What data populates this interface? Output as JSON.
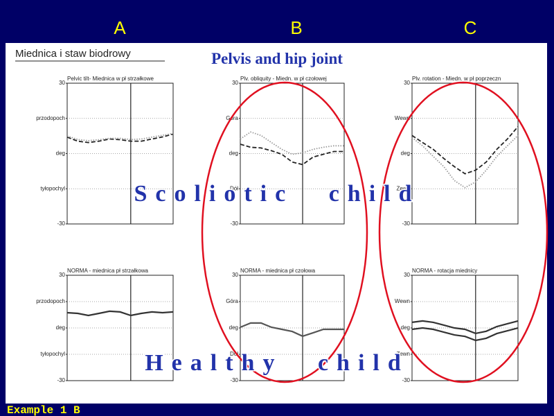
{
  "header": {
    "columns": [
      "A",
      "B",
      "C"
    ],
    "title": "Miednica i staw biodrowy",
    "subtitle": "Pelvis and hip joint",
    "label_top": "Scoliotic child",
    "label_bottom": "Healthy child",
    "footer": "Example 1 B"
  },
  "chart_data": [
    {
      "type": "line",
      "title": "Pelvic tilt- Miednica w pł strzałkowe",
      "xlim": [
        0,
        100
      ],
      "ylim": [
        -30,
        30
      ],
      "grid": true,
      "yticks": [
        -30,
        {
          "value": -15,
          "label": "tyłopochyl"
        },
        {
          "value": 0,
          "label": "deg"
        },
        {
          "value": 15,
          "label": "przodopoch"
        },
        30
      ],
      "x": [
        0,
        10,
        20,
        30,
        40,
        50,
        60,
        70,
        80,
        90,
        100
      ],
      "series": [
        {
          "color": "#222222",
          "dash": "dashed",
          "values": [
            7,
            5.3,
            4.7,
            5.3,
            6.2,
            5.9,
            5.3,
            5.3,
            6.2,
            7.1,
            8.3
          ]
        },
        {
          "color": "#999999",
          "dash": "dotted",
          "values": [
            7.5,
            6,
            5.5,
            5.9,
            6.5,
            6.5,
            6,
            6.2,
            7,
            7.8,
            8.5
          ]
        }
      ]
    },
    {
      "type": "line",
      "title": "Plv. obliquity - Miedn. w pł czołowej",
      "xlim": [
        0,
        100
      ],
      "ylim": [
        -30,
        30
      ],
      "grid": true,
      "yticks": [
        -30,
        {
          "value": -15,
          "label": "Dół"
        },
        {
          "value": 0,
          "label": "deg"
        },
        {
          "value": 15,
          "label": "Góra"
        },
        30
      ],
      "x": [
        0,
        10,
        20,
        30,
        40,
        50,
        60,
        70,
        80,
        90,
        100
      ],
      "series": [
        {
          "color": "#222222",
          "dash": "dashed",
          "values": [
            4,
            2.7,
            2.4,
            1.2,
            -0.3,
            -3.6,
            -4.7,
            -1.5,
            -0.3,
            0.9,
            0.9
          ]
        },
        {
          "color": "#999999",
          "dash": "dotted",
          "values": [
            6.2,
            9.2,
            7.7,
            4.7,
            1.8,
            -0.3,
            0.3,
            1.8,
            2.7,
            3.3,
            3.3
          ]
        }
      ]
    },
    {
      "type": "line",
      "title": "Plv. rotation - Miedn. w pł poprzeczn",
      "xlim": [
        0,
        100
      ],
      "ylim": [
        -30,
        30
      ],
      "grid": true,
      "yticks": [
        -30,
        {
          "value": -15,
          "label": "Zewn"
        },
        {
          "value": 0,
          "label": "deg"
        },
        {
          "value": 15,
          "label": "Wewn"
        },
        30
      ],
      "x": [
        0,
        10,
        20,
        30,
        40,
        50,
        60,
        70,
        80,
        90,
        100
      ],
      "series": [
        {
          "color": "#222222",
          "dash": "dashed",
          "values": [
            7.7,
            4.7,
            1.8,
            -2.1,
            -5.6,
            -8.6,
            -7.1,
            -3.6,
            1.8,
            6.2,
            11.5
          ]
        },
        {
          "color": "#999999",
          "dash": "dotted",
          "values": [
            6.8,
            3.3,
            -1.2,
            -5.6,
            -11.5,
            -14.5,
            -12.1,
            -7.1,
            -1.2,
            3.3,
            7.7
          ]
        }
      ]
    },
    {
      "type": "line",
      "title": "NORMA - miednica pł strzałkowa",
      "xlim": [
        0,
        100
      ],
      "ylim": [
        -30,
        30
      ],
      "grid": true,
      "yticks": [
        -30,
        {
          "value": -15,
          "label": "tyłopochyl"
        },
        {
          "value": 0,
          "label": "deg"
        },
        {
          "value": 15,
          "label": "przodopoch"
        },
        30
      ],
      "x": [
        0,
        10,
        20,
        30,
        40,
        50,
        60,
        70,
        80,
        90,
        100
      ],
      "series": [
        {
          "color": "#333333",
          "dash": "solid",
          "values": [
            8.7,
            8.3,
            7.1,
            8.3,
            9.5,
            9.1,
            7.1,
            8.3,
            9.1,
            8.7,
            9.1
          ]
        }
      ]
    },
    {
      "type": "line",
      "title": "NORMA - miednica pł czołowa",
      "xlim": [
        0,
        100
      ],
      "ylim": [
        -30,
        30
      ],
      "grid": true,
      "yticks": [
        -30,
        {
          "value": -15,
          "label": "Dół"
        },
        {
          "value": 0,
          "label": "deg"
        },
        {
          "value": 15,
          "label": "Góra"
        },
        30
      ],
      "x": [
        0,
        10,
        20,
        30,
        40,
        50,
        60,
        70,
        80,
        90,
        100
      ],
      "series": [
        {
          "color": "#555555",
          "dash": "solid",
          "values": [
            0.4,
            2.8,
            2.8,
            0.4,
            -0.8,
            -2,
            -4.7,
            -2.8,
            -0.8,
            -0.8,
            -0.8
          ]
        }
      ]
    },
    {
      "type": "line",
      "title": "NORMA - rotacja miednicy",
      "xlim": [
        0,
        100
      ],
      "ylim": [
        -30,
        30
      ],
      "grid": true,
      "yticks": [
        -30,
        {
          "value": -15,
          "label": "Zewn"
        },
        {
          "value": 0,
          "label": "deg"
        },
        {
          "value": 15,
          "label": "Wewn"
        },
        30
      ],
      "x": [
        0,
        10,
        20,
        30,
        40,
        50,
        60,
        70,
        80,
        90,
        100
      ],
      "series": [
        {
          "color": "#333333",
          "dash": "solid",
          "values": [
            3.2,
            4,
            3.2,
            1.6,
            0,
            -0.8,
            -3.1,
            -1.9,
            0.8,
            2.4,
            4
          ]
        },
        {
          "color": "#333333",
          "dash": "solid",
          "values": [
            -0.8,
            0,
            -0.8,
            -2.4,
            -4,
            -4.8,
            -7.1,
            -5.9,
            -3.2,
            -1.6,
            0
          ]
        }
      ]
    }
  ]
}
